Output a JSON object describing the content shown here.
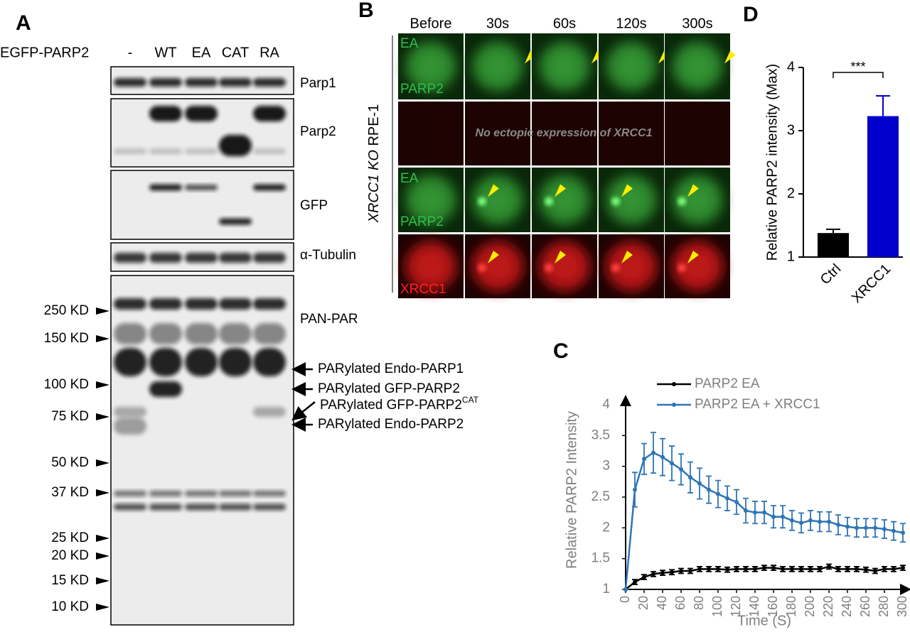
{
  "panel_labels": [
    "A",
    "B",
    "C",
    "D"
  ],
  "blot": {
    "row_label": "EGFP-PARP2",
    "lanes": [
      "-",
      "WT",
      "EA",
      "CAT",
      "RA"
    ],
    "blots": [
      "Parp1",
      "Parp2",
      "GFP",
      "α-Tubulin",
      "PAN-PAR"
    ],
    "markers": [
      "250 KD",
      "150 KD",
      "100 KD",
      "75 KD",
      "50 KD",
      "37 KD",
      "25 KD",
      "20 KD",
      "15 KD",
      "10 KD"
    ],
    "annotations": [
      {
        "text": "PARylated Endo-PARP1"
      },
      {
        "text": "PARylated GFP-PARP2"
      },
      {
        "text": "PARylated GFP-PARP2",
        "superscript": "CAT"
      },
      {
        "text": "PARylated Endo-PARP2"
      }
    ]
  },
  "imaging": {
    "times": [
      "Before",
      "30s",
      "60s",
      "120s",
      "300s"
    ],
    "side_label_italic": "XRCC1 KO",
    "side_label": " RPE-1",
    "row_labels": [
      "EA",
      "PARP2",
      "EA",
      "PARP2",
      "XRCC1"
    ],
    "note": "No ectopic expression of XRCC1"
  },
  "chart_data": [
    {
      "type": "line",
      "x_label": "Time (S)",
      "y_label": "Relative PARP2 Intensity",
      "x": [
        0,
        10,
        20,
        30,
        40,
        50,
        60,
        70,
        80,
        90,
        100,
        110,
        120,
        130,
        140,
        150,
        160,
        170,
        180,
        190,
        200,
        210,
        220,
        230,
        240,
        250,
        260,
        270,
        280,
        290,
        300
      ],
      "series": [
        {
          "name": "PARP2 EA",
          "color": "#000000",
          "values": [
            1,
            1.12,
            1.2,
            1.25,
            1.27,
            1.28,
            1.3,
            1.3,
            1.33,
            1.33,
            1.33,
            1.32,
            1.33,
            1.33,
            1.33,
            1.35,
            1.35,
            1.33,
            1.33,
            1.33,
            1.33,
            1.33,
            1.37,
            1.33,
            1.33,
            1.33,
            1.32,
            1.3,
            1.33,
            1.33,
            1.35
          ],
          "errors": [
            0,
            0.04,
            0.04,
            0.04,
            0.04,
            0.04,
            0.04,
            0.04,
            0.04,
            0.04,
            0.04,
            0.04,
            0.04,
            0.04,
            0.04,
            0.04,
            0.04,
            0.04,
            0.04,
            0.04,
            0.04,
            0.04,
            0.04,
            0.04,
            0.04,
            0.04,
            0.04,
            0.04,
            0.04,
            0.04,
            0.04
          ]
        },
        {
          "name": "PARP2 EA + XRCC1",
          "color": "#2e75b6",
          "values": [
            1,
            2.62,
            3.12,
            3.22,
            3.15,
            3.05,
            2.95,
            2.82,
            2.72,
            2.62,
            2.55,
            2.48,
            2.42,
            2.28,
            2.25,
            2.25,
            2.18,
            2.18,
            2.12,
            2.08,
            2.12,
            2.1,
            2.1,
            2.05,
            2.02,
            2.0,
            2.0,
            2.0,
            1.98,
            1.95,
            1.92
          ],
          "errors": [
            0,
            0.28,
            0.25,
            0.33,
            0.3,
            0.28,
            0.25,
            0.25,
            0.25,
            0.22,
            0.22,
            0.2,
            0.2,
            0.2,
            0.18,
            0.18,
            0.18,
            0.18,
            0.16,
            0.16,
            0.16,
            0.16,
            0.16,
            0.16,
            0.15,
            0.15,
            0.15,
            0.15,
            0.15,
            0.15,
            0.15
          ]
        }
      ],
      "xlim": [
        0,
        300
      ],
      "xticks": [
        0,
        20,
        40,
        60,
        80,
        100,
        120,
        140,
        160,
        180,
        200,
        220,
        240,
        260,
        280,
        300
      ],
      "ylim": [
        1,
        4
      ],
      "yticks": [
        1,
        1.5,
        2,
        2.5,
        3,
        3.5,
        4
      ],
      "legend": "top"
    },
    {
      "type": "bar",
      "y_label": "Relative PARP2 intensity (Max)",
      "categories": [
        "Ctrl",
        "XRCC1"
      ],
      "values": [
        1.38,
        3.23
      ],
      "errors": [
        0.06,
        0.32
      ],
      "colors": [
        "#000000",
        "#0000cc"
      ],
      "ylim": [
        1,
        4
      ],
      "yticks": [
        1,
        2,
        3,
        4
      ],
      "annotation": "***"
    }
  ]
}
